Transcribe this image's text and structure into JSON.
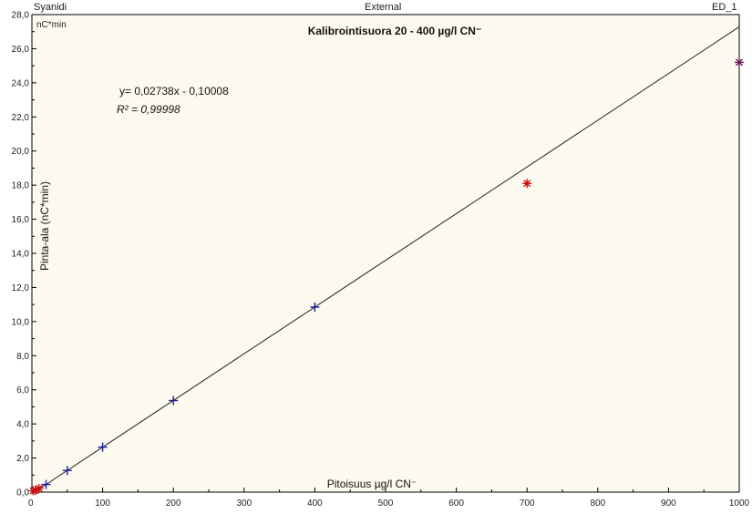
{
  "header": {
    "left": "Syanidi",
    "center": "External",
    "right": "ED_1"
  },
  "colors": {
    "background": "#FCFAEE",
    "fit_line": "#222222",
    "calibration": "#1a1aa0",
    "check": "#cc1111",
    "outlier": "#6b1a5a"
  },
  "chart_data": {
    "type": "scatter",
    "title": "Kalibrointisuora 20 - 400 µg/l CN⁻",
    "unit_label": "nC*min",
    "xlabel": "Pitoisuus µg/l CN⁻",
    "ylabel": "Pinta-ala (nC*min)",
    "xlim": [
      0,
      1000
    ],
    "ylim": [
      0,
      28
    ],
    "x_ticks": [
      "0",
      "100",
      "200",
      "300",
      "400",
      "500",
      "600",
      "700",
      "800",
      "900",
      "1000"
    ],
    "y_ticks": [
      "0,0",
      "2,0",
      "4,0",
      "6,0",
      "8,0",
      "10,0",
      "12,0",
      "14,0",
      "16,0",
      "18,0",
      "20,0",
      "22,0",
      "24,0",
      "26,0",
      "28,0"
    ],
    "equation": "y= 0,02738x  - 0,10008",
    "r2_label": "R² = 0,99998",
    "fit": {
      "slope": 0.02738,
      "intercept": -0.10008
    },
    "series": [
      {
        "marker": "plus",
        "points": [
          [
            20,
            0.45
          ],
          [
            50,
            1.27
          ],
          [
            100,
            2.64
          ],
          [
            200,
            5.37
          ],
          [
            400,
            10.85
          ]
        ]
      },
      {
        "marker": "asterisk",
        "points": [
          [
            2,
            0.08
          ],
          [
            5,
            0.1
          ],
          [
            10,
            0.22
          ],
          [
            700,
            18.1
          ]
        ]
      },
      {
        "marker": "asterisk",
        "points": [
          [
            1000,
            25.2
          ]
        ]
      }
    ]
  }
}
